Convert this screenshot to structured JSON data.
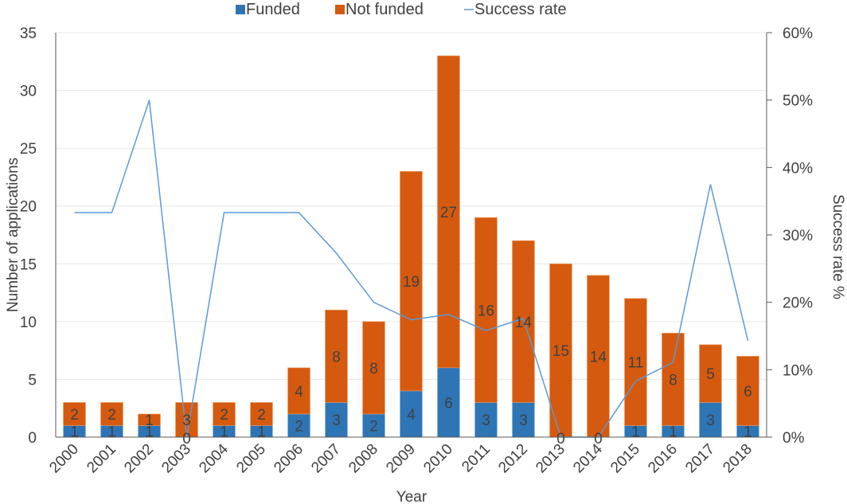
{
  "chart_data": {
    "type": "bar",
    "stacked": true,
    "title": "",
    "xlabel": "Year",
    "ylabel": "Number of applications",
    "y2label": "Success rate %",
    "ylim": [
      0,
      35
    ],
    "y_ticks": [
      0,
      5,
      10,
      15,
      20,
      25,
      30,
      35
    ],
    "y2lim": [
      0,
      60
    ],
    "y2_ticks": [
      "0%",
      "10%",
      "20%",
      "30%",
      "40%",
      "50%",
      "60%"
    ],
    "y2_tick_values": [
      0,
      10,
      20,
      30,
      40,
      50,
      60
    ],
    "grid": true,
    "legend_position": "top-center",
    "categories": [
      "2000",
      "2001",
      "2002",
      "2003",
      "2004",
      "2005",
      "2006",
      "2007",
      "2008",
      "2009",
      "2010",
      "2011",
      "2012",
      "2013",
      "2014",
      "2015",
      "2016",
      "2017",
      "2018"
    ],
    "series": [
      {
        "name": "Funded",
        "type": "bar",
        "axis": "left",
        "color": "#2E75B6",
        "values": [
          1,
          1,
          1,
          0,
          1,
          1,
          2,
          3,
          2,
          4,
          6,
          3,
          3,
          0,
          0,
          1,
          1,
          3,
          1
        ]
      },
      {
        "name": "Not funded",
        "type": "bar",
        "axis": "left",
        "color": "#D55A0F",
        "values": [
          2,
          2,
          1,
          3,
          2,
          2,
          4,
          8,
          8,
          19,
          27,
          16,
          14,
          15,
          14,
          11,
          8,
          5,
          6
        ]
      },
      {
        "name": "Success rate",
        "type": "line",
        "axis": "right",
        "color": "#5B9BD5",
        "values": [
          33.3,
          33.3,
          50.0,
          0,
          33.3,
          33.3,
          33.3,
          27.3,
          20.0,
          17.4,
          18.2,
          15.8,
          17.6,
          0,
          0,
          8.3,
          11.1,
          37.5,
          14.3
        ]
      }
    ],
    "legend": [
      {
        "label": "Funded",
        "marker": "square",
        "color": "#2E75B6"
      },
      {
        "label": "Not funded",
        "marker": "square",
        "color": "#D55A0F"
      },
      {
        "label": "Success rate",
        "marker": "line",
        "color": "#5B9BD5"
      }
    ]
  }
}
